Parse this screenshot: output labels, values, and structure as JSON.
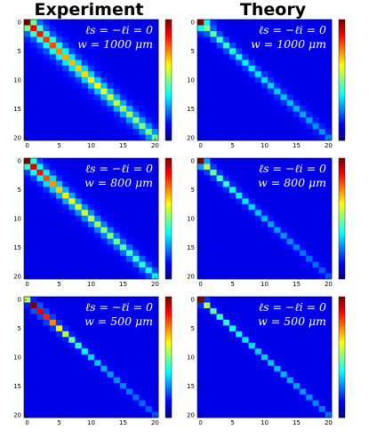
{
  "columns": [
    "Experiment",
    "Theory"
  ],
  "chart_data": [
    {
      "type": "heatmap",
      "column": "Experiment",
      "annotation_line1": "ℓs = −ℓi = 0",
      "annotation_line2": "w = 1000 μm",
      "x_range": [
        0,
        20
      ],
      "y_range": [
        0,
        20
      ],
      "x_ticks": [
        0,
        5,
        10,
        15,
        20
      ],
      "y_ticks": [
        0,
        5,
        10,
        15,
        20
      ],
      "colormap": "jet",
      "diagonal_profile": [
        1.0,
        0.88,
        0.85,
        0.8,
        0.78,
        0.72,
        0.68,
        0.66,
        0.64,
        0.62,
        0.6,
        0.58,
        0.56,
        0.54,
        0.52,
        0.5,
        0.48,
        0.46,
        0.45,
        0.44,
        0.42
      ],
      "off_diagonal_decay": 0.42
    },
    {
      "type": "heatmap",
      "column": "Theory",
      "annotation_line1": "ℓs = −ℓi = 0",
      "annotation_line2": "w = 1000 μm",
      "x_range": [
        0,
        20
      ],
      "y_range": [
        0,
        20
      ],
      "x_ticks": [
        0,
        5,
        10,
        15,
        20
      ],
      "y_ticks": [
        0,
        5,
        10,
        15,
        20
      ],
      "colormap": "jet",
      "diagonal_profile": [
        1.0,
        0.45,
        0.4,
        0.37,
        0.35,
        0.33,
        0.31,
        0.3,
        0.29,
        0.28,
        0.27,
        0.26,
        0.25,
        0.24,
        0.23,
        0.22,
        0.21,
        0.2,
        0.19,
        0.18,
        0.17
      ],
      "off_diagonal_decay": 0.3
    },
    {
      "type": "heatmap",
      "column": "Experiment",
      "annotation_line1": "ℓs = −ℓi = 0",
      "annotation_line2": "w = 800 μm",
      "x_range": [
        0,
        20
      ],
      "y_range": [
        0,
        20
      ],
      "x_ticks": [
        0,
        5,
        10,
        15,
        20
      ],
      "y_ticks": [
        0,
        5,
        10,
        15,
        20
      ],
      "colormap": "jet",
      "diagonal_profile": [
        1.0,
        0.9,
        0.85,
        0.78,
        0.7,
        0.64,
        0.6,
        0.57,
        0.54,
        0.52,
        0.5,
        0.48,
        0.46,
        0.44,
        0.42,
        0.4,
        0.38,
        0.36,
        0.34,
        0.32,
        0.3
      ],
      "off_diagonal_decay": 0.35
    },
    {
      "type": "heatmap",
      "column": "Theory",
      "annotation_line1": "ℓs = −ℓi = 0",
      "annotation_line2": "w = 800 μm",
      "x_range": [
        0,
        20
      ],
      "y_range": [
        0,
        20
      ],
      "x_ticks": [
        0,
        5,
        10,
        15,
        20
      ],
      "y_ticks": [
        0,
        5,
        10,
        15,
        20
      ],
      "colormap": "jet",
      "diagonal_profile": [
        1.0,
        0.5,
        0.42,
        0.38,
        0.35,
        0.32,
        0.3,
        0.28,
        0.26,
        0.24,
        0.22,
        0.21,
        0.2,
        0.19,
        0.18,
        0.17,
        0.16,
        0.15,
        0.14,
        0.13,
        0.12
      ],
      "off_diagonal_decay": 0.2
    },
    {
      "type": "heatmap",
      "column": "Experiment",
      "annotation_line1": "ℓs = −ℓi = 0",
      "annotation_line2": "w = 500 μm",
      "x_range": [
        0,
        20
      ],
      "y_range": [
        0,
        20
      ],
      "x_ticks": [
        0,
        5,
        10,
        15,
        20
      ],
      "y_ticks": [
        0,
        5,
        10,
        15,
        20
      ],
      "colormap": "jet",
      "diagonal_profile": [
        0.5,
        1.0,
        0.88,
        0.82,
        0.72,
        0.6,
        0.5,
        0.42,
        0.35,
        0.3,
        0.27,
        0.24,
        0.22,
        0.2,
        0.18,
        0.17,
        0.16,
        0.15,
        0.14,
        0.13,
        0.12
      ],
      "off_diagonal_decay": 0.12
    },
    {
      "type": "heatmap",
      "column": "Theory",
      "annotation_line1": "ℓs = −ℓi = 0",
      "annotation_line2": "w = 500 μm",
      "x_range": [
        0,
        20
      ],
      "y_range": [
        0,
        20
      ],
      "x_ticks": [
        0,
        5,
        10,
        15,
        20
      ],
      "y_ticks": [
        0,
        5,
        10,
        15,
        20
      ],
      "colormap": "jet",
      "diagonal_profile": [
        1.0,
        0.5,
        0.4,
        0.36,
        0.34,
        0.32,
        0.3,
        0.28,
        0.27,
        0.26,
        0.25,
        0.24,
        0.23,
        0.22,
        0.21,
        0.2,
        0.19,
        0.18,
        0.17,
        0.16,
        0.15
      ],
      "off_diagonal_decay": 0.08
    }
  ]
}
